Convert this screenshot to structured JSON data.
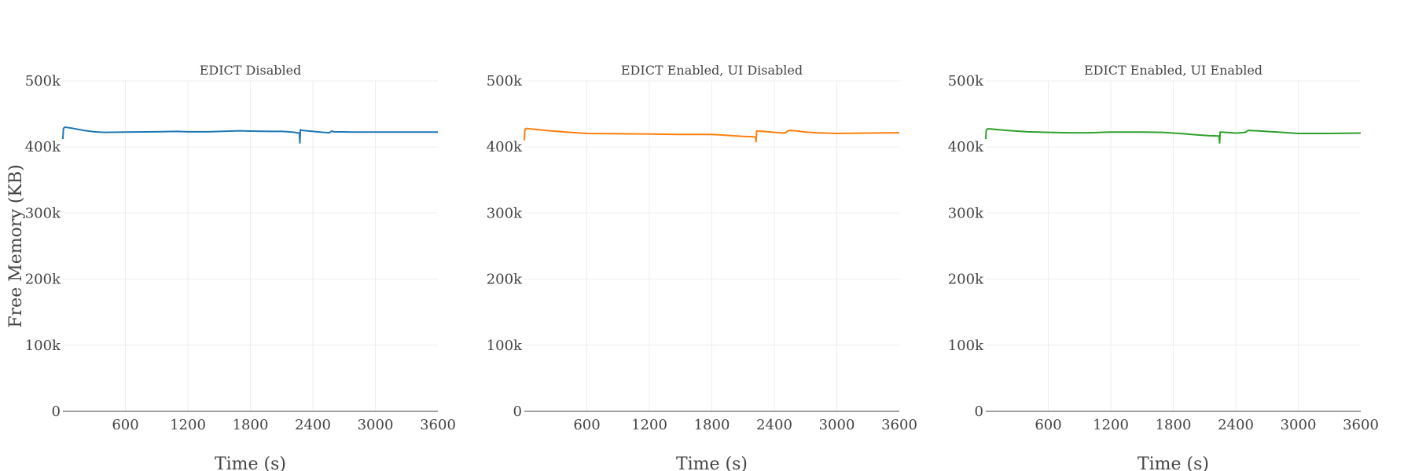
{
  "chart_data": [
    {
      "type": "line",
      "title": "EDICT Disabled",
      "xlabel": "Time (s)",
      "ylabel": "Free Memory (KB)",
      "xlim": [
        0,
        3600
      ],
      "ylim": [
        0,
        500000
      ],
      "xticks": [
        600,
        1200,
        1800,
        2400,
        3000,
        3600
      ],
      "xtick_labels": [
        "600",
        "1200",
        "1800",
        "2400",
        "3000",
        "3600"
      ],
      "yticks": [
        0,
        100000,
        200000,
        300000,
        400000,
        500000
      ],
      "ytick_labels": [
        "0",
        "100k",
        "200k",
        "300k",
        "400k",
        "500k"
      ],
      "grid": true,
      "color": "#1f77b4",
      "series": [
        {
          "x": [
            0,
            5,
            20,
            100,
            200,
            300,
            400,
            600,
            900,
            1100,
            1200,
            1400,
            1600,
            1700,
            1800,
            2000,
            2100,
            2200,
            2270,
            2275,
            2280,
            2300,
            2400,
            2500,
            2560,
            2580,
            2600,
            2800,
            3000,
            3300,
            3600
          ],
          "y": [
            412000,
            428000,
            430000,
            428000,
            425000,
            423000,
            422000,
            422500,
            423000,
            423500,
            423000,
            423000,
            424000,
            424500,
            424000,
            423500,
            423500,
            422500,
            421000,
            406000,
            426000,
            425000,
            423500,
            422000,
            421500,
            424000,
            423000,
            422500,
            422500,
            422500,
            422500
          ]
        }
      ]
    },
    {
      "type": "line",
      "title": "EDICT Enabled, UI Disabled",
      "xlabel": "Time (s)",
      "ylabel": "",
      "xlim": [
        0,
        3600
      ],
      "ylim": [
        0,
        500000
      ],
      "xticks": [
        600,
        1200,
        1800,
        2400,
        3000,
        3600
      ],
      "xtick_labels": [
        "600",
        "1200",
        "1800",
        "2400",
        "3000",
        "3600"
      ],
      "yticks": [
        0,
        100000,
        200000,
        300000,
        400000,
        500000
      ],
      "ytick_labels": [
        "0",
        "100k",
        "200k",
        "300k",
        "400k",
        "500k"
      ],
      "grid": true,
      "color": "#ff7f0e",
      "series": [
        {
          "x": [
            0,
            5,
            20,
            200,
            400,
            600,
            900,
            1200,
            1500,
            1800,
            1900,
            2000,
            2100,
            2180,
            2220,
            2225,
            2230,
            2300,
            2400,
            2500,
            2540,
            2600,
            2700,
            2800,
            3000,
            3300,
            3600
          ],
          "y": [
            410000,
            426000,
            428000,
            425000,
            422500,
            420500,
            420000,
            419500,
            419000,
            419000,
            418000,
            417000,
            416000,
            415500,
            415000,
            408000,
            424000,
            423500,
            422000,
            421000,
            425000,
            424500,
            422500,
            421500,
            420500,
            421000,
            421500
          ]
        }
      ]
    },
    {
      "type": "line",
      "title": "EDICT Enabled, UI Enabled",
      "xlabel": "Time (s)",
      "ylabel": "",
      "xlim": [
        0,
        3600
      ],
      "ylim": [
        0,
        500000
      ],
      "xticks": [
        600,
        1200,
        1800,
        2400,
        3000,
        3600
      ],
      "xtick_labels": [
        "600",
        "1200",
        "1800",
        "2400",
        "3000",
        "3600"
      ],
      "yticks": [
        0,
        100000,
        200000,
        300000,
        400000,
        500000
      ],
      "ytick_labels": [
        "0",
        "100k",
        "200k",
        "300k",
        "400k",
        "500k"
      ],
      "grid": true,
      "color": "#2ca02c",
      "series": [
        {
          "x": [
            0,
            5,
            20,
            200,
            400,
            600,
            800,
            1000,
            1200,
            1500,
            1700,
            1900,
            2050,
            2150,
            2240,
            2245,
            2250,
            2300,
            2400,
            2450,
            2490,
            2520,
            2600,
            2800,
            3000,
            3300,
            3600
          ],
          "y": [
            412000,
            426000,
            427500,
            425000,
            423000,
            422000,
            421500,
            421500,
            422500,
            422500,
            422000,
            420000,
            418000,
            417000,
            416500,
            406000,
            422500,
            422000,
            421000,
            421500,
            422000,
            425000,
            424500,
            422500,
            420500,
            420500,
            421000
          ]
        }
      ]
    }
  ]
}
